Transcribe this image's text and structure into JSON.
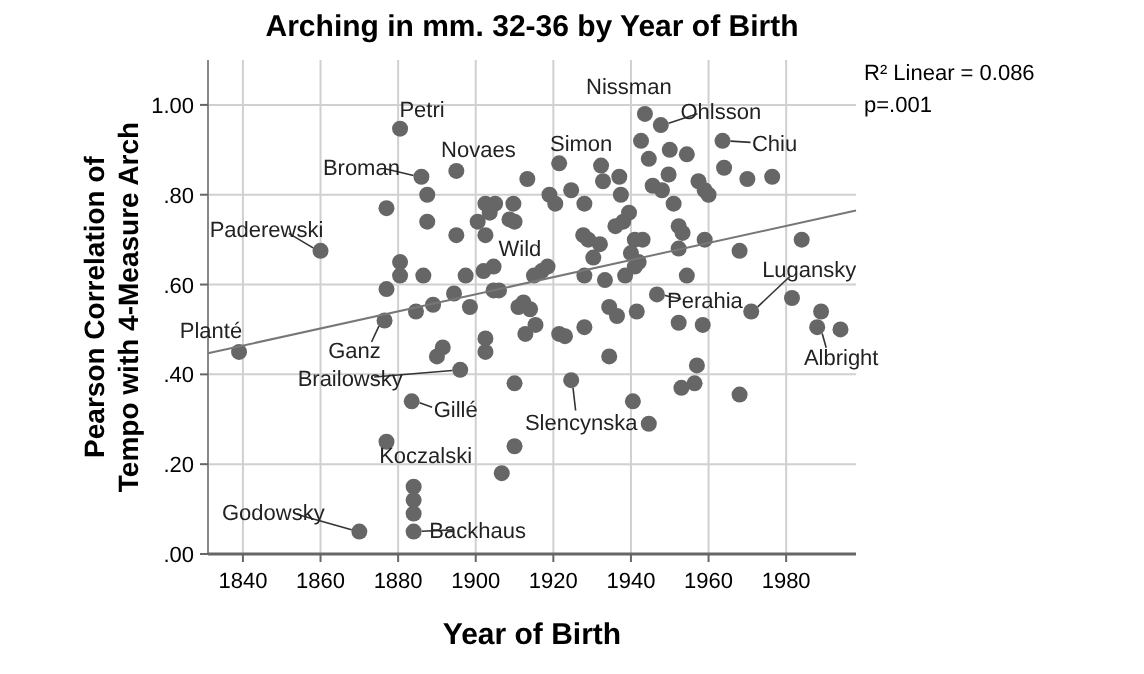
{
  "chart_data": {
    "type": "scatter",
    "title": "Arching in mm. 32-36 by Year of Birth",
    "xlabel": "Year of Birth",
    "ylabel": "Pearson Correlation of\nTempo with 4-Measure Arch",
    "xlim": [
      1831,
      1998
    ],
    "xticks": [
      1840,
      1860,
      1880,
      1900,
      1920,
      1940,
      1960,
      1980
    ],
    "ylim": [
      0,
      1.1
    ],
    "yticks": [
      {
        "value": 0,
        "label": ".00"
      },
      {
        "value": 0.2,
        "label": ".20"
      },
      {
        "value": 0.4,
        "label": ".40"
      },
      {
        "value": 0.6,
        "label": ".60"
      },
      {
        "value": 0.8,
        "label": ".80"
      },
      {
        "value": 1,
        "label": "1.00"
      }
    ],
    "grid": true,
    "series": [
      {
        "marker": "circle",
        "color": "#666666",
        "x": [
          1839,
          1860,
          1880.5,
          1886,
          1887.5,
          1895,
          1877,
          1887.5,
          1895,
          1902.5,
          1880.5,
          1880.5,
          1886.5,
          1877,
          1876.5,
          1896,
          1890,
          1891.5,
          1883.5,
          1877,
          1884,
          1884,
          1884,
          1884,
          1870,
          1902.5,
          1902.5,
          1906.7,
          1910,
          1910,
          1924.6,
          1940.5,
          1944.6,
          1934.4,
          1953,
          1956.4,
          1957,
          1968,
          1952.3,
          1958.5,
          1928,
          1921.5,
          1923,
          1912.8,
          1915.4,
          1911,
          1914,
          1934.4,
          1936.4,
          1941.5,
          1988,
          1989,
          1994,
          1946.7,
          1971,
          1981.5,
          1984,
          1968,
          1943.6,
          1947.7,
          1963.6,
          1921.5,
          1942.6,
          1932.3,
          1944.6,
          1950,
          1954.4,
          1913.3,
          1932.8,
          1937,
          1945.6,
          1949.7,
          1964,
          1970,
          1976.4,
          1957.4,
          1959,
          1960,
          1919,
          1920.5,
          1924.6,
          1928,
          1937.4,
          1948,
          1951,
          1909.7,
          1908.7,
          1939.5,
          1952.3,
          1953.3,
          1927.7,
          1929,
          1936,
          1938,
          1932,
          1941,
          1943,
          1959,
          1940,
          1942,
          1952.3,
          1930.3,
          1915,
          1917,
          1918.5,
          1928,
          1933.3,
          1938.5,
          1941,
          1954.4,
          1906,
          1912.3,
          1902.5,
          1905,
          1903.6,
          1910,
          1900.5,
          1904.6,
          1902,
          1897.4,
          1894.4,
          1889,
          1884.6,
          1898.5,
          1904.6
        ],
        "values": [
          0.45,
          0.675,
          0.947,
          0.84,
          0.8,
          0.853,
          0.77,
          0.74,
          0.71,
          0.71,
          0.65,
          0.62,
          0.62,
          0.59,
          0.52,
          0.41,
          0.44,
          0.46,
          0.34,
          0.25,
          0.15,
          0.12,
          0.09,
          0.05,
          0.05,
          0.48,
          0.45,
          0.18,
          0.24,
          0.38,
          0.387,
          0.34,
          0.29,
          0.44,
          0.37,
          0.38,
          0.42,
          0.355,
          0.515,
          0.51,
          0.505,
          0.49,
          0.485,
          0.49,
          0.51,
          0.55,
          0.545,
          0.55,
          0.53,
          0.54,
          0.505,
          0.54,
          0.5,
          0.578,
          0.54,
          0.57,
          0.7,
          0.675,
          0.98,
          0.955,
          0.92,
          0.87,
          0.92,
          0.865,
          0.88,
          0.9,
          0.89,
          0.835,
          0.83,
          0.84,
          0.82,
          0.845,
          0.86,
          0.835,
          0.84,
          0.83,
          0.81,
          0.8,
          0.8,
          0.78,
          0.81,
          0.78,
          0.8,
          0.81,
          0.78,
          0.78,
          0.745,
          0.76,
          0.73,
          0.715,
          0.71,
          0.7,
          0.73,
          0.74,
          0.69,
          0.7,
          0.7,
          0.7,
          0.67,
          0.65,
          0.68,
          0.66,
          0.62,
          0.63,
          0.64,
          0.62,
          0.61,
          0.62,
          0.64,
          0.62,
          0.587,
          0.56,
          0.78,
          0.78,
          0.76,
          0.74,
          0.74,
          0.64,
          0.63,
          0.62,
          0.58,
          0.555,
          0.54,
          0.55,
          0.587
        ]
      },
      {
        "type": "line",
        "color": "#777777",
        "x": [
          1831,
          1998
        ],
        "values": [
          0.447,
          0.765
        ]
      }
    ],
    "annotations": [
      {
        "text": "Planté",
        "x": 1839,
        "y": 0.45
      },
      {
        "text": "Paderewski",
        "x": 1860,
        "y": 0.675
      },
      {
        "text": "Petri",
        "x": 1880.5,
        "y": 0.947
      },
      {
        "text": "Broman",
        "x": 1886,
        "y": 0.84
      },
      {
        "text": "Novaes",
        "x": 1895,
        "y": 0.853
      },
      {
        "text": "Ganz",
        "x": 1876.5,
        "y": 0.52
      },
      {
        "text": "Brailowsky",
        "x": 1896,
        "y": 0.41
      },
      {
        "text": "Gillé",
        "x": 1883.5,
        "y": 0.34
      },
      {
        "text": "Koczalski",
        "x": 1884,
        "y": 0.15
      },
      {
        "text": "Godowsky",
        "x": 1870,
        "y": 0.05
      },
      {
        "text": "Backhaus",
        "x": 1884,
        "y": 0.05
      },
      {
        "text": "Slencynska",
        "x": 1924.6,
        "y": 0.387
      },
      {
        "text": "Wild",
        "x": 1915,
        "y": 0.62
      },
      {
        "text": "Simon",
        "x": 1921.5,
        "y": 0.87
      },
      {
        "text": "Nissman",
        "x": 1943.6,
        "y": 0.98
      },
      {
        "text": "Ohlsson",
        "x": 1947.7,
        "y": 0.955
      },
      {
        "text": "Chiu",
        "x": 1963.6,
        "y": 0.92
      },
      {
        "text": "Perahia",
        "x": 1946.7,
        "y": 0.578
      },
      {
        "text": "Lugansky",
        "x": 1971,
        "y": 0.54
      },
      {
        "text": "Albright",
        "x": 1988,
        "y": 0.505
      },
      "R² Linear = 0.086",
      "p=.001"
    ]
  }
}
